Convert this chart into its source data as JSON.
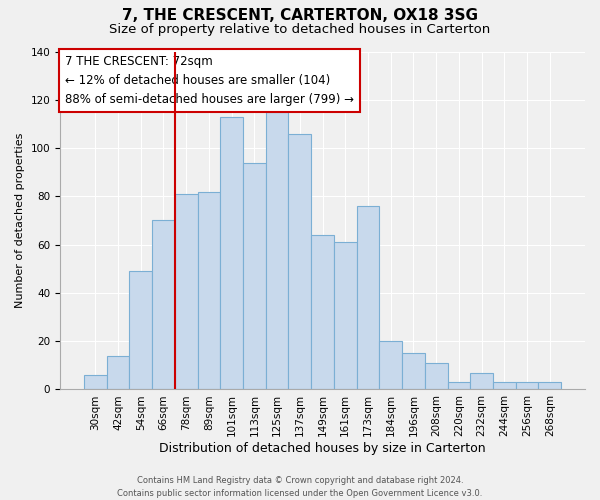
{
  "title": "7, THE CRESCENT, CARTERTON, OX18 3SG",
  "subtitle": "Size of property relative to detached houses in Carterton",
  "xlabel": "Distribution of detached houses by size in Carterton",
  "ylabel": "Number of detached properties",
  "footer_line1": "Contains HM Land Registry data © Crown copyright and database right 2024.",
  "footer_line2": "Contains public sector information licensed under the Open Government Licence v3.0.",
  "bin_labels": [
    "30sqm",
    "42sqm",
    "54sqm",
    "66sqm",
    "78sqm",
    "89sqm",
    "101sqm",
    "113sqm",
    "125sqm",
    "137sqm",
    "149sqm",
    "161sqm",
    "173sqm",
    "184sqm",
    "196sqm",
    "208sqm",
    "220sqm",
    "232sqm",
    "244sqm",
    "256sqm",
    "268sqm"
  ],
  "bin_values": [
    6,
    14,
    49,
    70,
    81,
    82,
    113,
    94,
    115,
    106,
    64,
    61,
    76,
    20,
    15,
    11,
    3,
    7,
    3,
    3,
    3
  ],
  "bar_color": "#c8d9ec",
  "bar_edgecolor": "#7bafd4",
  "bar_linewidth": 0.8,
  "vline_x": 3.5,
  "vline_color": "#cc0000",
  "annotation_line1": "7 THE CRESCENT: 72sqm",
  "annotation_line2": "← 12% of detached houses are smaller (104)",
  "annotation_line3": "88% of semi-detached houses are larger (799) →",
  "annotation_fontsize": 8.5,
  "annotation_box_edgecolor": "#cc0000",
  "annotation_box_facecolor": "white",
  "ylim": [
    0,
    140
  ],
  "yticks": [
    0,
    20,
    40,
    60,
    80,
    100,
    120,
    140
  ],
  "background_color": "#f0f0f0",
  "plot_background": "#f0f0f0",
  "title_fontsize": 11,
  "subtitle_fontsize": 9.5,
  "xlabel_fontsize": 9,
  "ylabel_fontsize": 8,
  "tick_fontsize": 7.5,
  "footer_fontsize": 6
}
